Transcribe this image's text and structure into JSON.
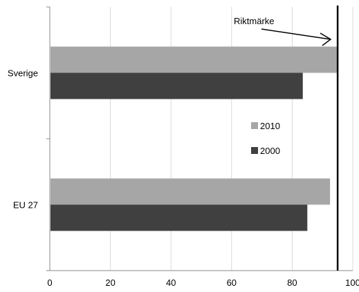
{
  "chart_data": {
    "type": "bar",
    "orientation": "horizontal",
    "categories": [
      "Sverige",
      "EU 27"
    ],
    "series": [
      {
        "name": "2010",
        "color": "#a6a6a6",
        "values": [
          95,
          92.5
        ]
      },
      {
        "name": "2000",
        "color": "#404040",
        "values": [
          83.5,
          85
        ]
      }
    ],
    "xlim": [
      0,
      100
    ],
    "xticks": [
      "0",
      "20",
      "40",
      "60",
      "80",
      "100"
    ],
    "grid": "vertical",
    "legend": "center-right",
    "reference_line": {
      "value": 95,
      "label": "Riktmärke"
    }
  }
}
